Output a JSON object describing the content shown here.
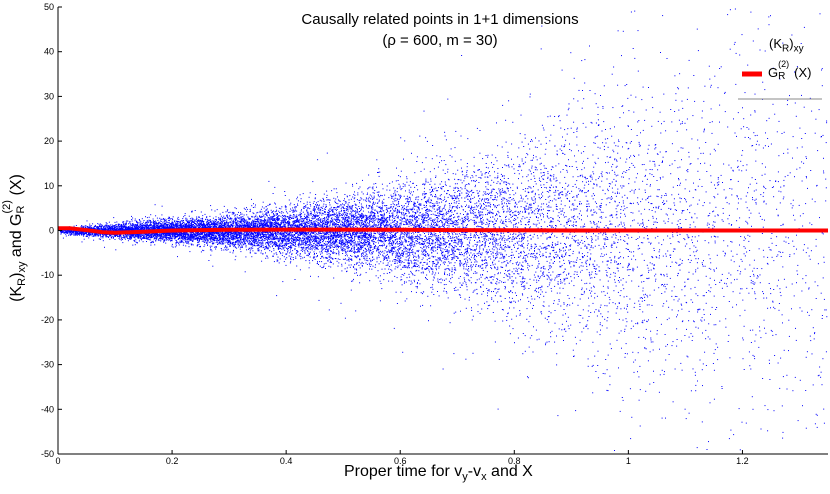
{
  "chart_data": {
    "type": "scatter",
    "title": "Causally related points in 1+1 dimensions",
    "subtitle": "(ρ = 600, m = 30)",
    "xlabel": "Proper time for v_y-v_x and X",
    "ylabel": "(K_R)_xy and G_R^(2)(X)",
    "xlim": [
      0,
      1.35
    ],
    "ylim": [
      -50,
      50
    ],
    "x_ticks": [
      0,
      0.2,
      0.4,
      0.6,
      0.8,
      1,
      1.2
    ],
    "x_tick_labels": [
      "0",
      "0.2",
      "0.4",
      "0.6",
      "0.8",
      "1",
      "1.2"
    ],
    "y_ticks": [
      -50,
      -40,
      -30,
      -20,
      -10,
      0,
      10,
      20,
      30,
      40,
      50
    ],
    "y_tick_labels": [
      "-50",
      "-40",
      "-30",
      "-20",
      "-10",
      "0",
      "10",
      "20",
      "30",
      "40",
      "50"
    ],
    "grid": false,
    "legend_placement": "top-right",
    "series": [
      {
        "name": "(K_R)_xy",
        "kind": "scatter",
        "color": "#0000ff",
        "description_of_distribution": "points centered on 0; spread grows with proper time",
        "spread_profile": [
          {
            "x": 0.02,
            "sd": 0.4
          },
          {
            "x": 0.1,
            "sd": 0.8
          },
          {
            "x": 0.2,
            "sd": 1.2
          },
          {
            "x": 0.3,
            "sd": 1.7
          },
          {
            "x": 0.4,
            "sd": 2.5
          },
          {
            "x": 0.5,
            "sd": 3.6
          },
          {
            "x": 0.6,
            "sd": 5.0
          },
          {
            "x": 0.7,
            "sd": 7.0
          },
          {
            "x": 0.8,
            "sd": 9.5
          },
          {
            "x": 0.9,
            "sd": 12.5
          },
          {
            "x": 1.0,
            "sd": 16.0
          },
          {
            "x": 1.1,
            "sd": 19.0
          },
          {
            "x": 1.2,
            "sd": 22.0
          },
          {
            "x": 1.35,
            "sd": 25.0
          }
        ],
        "point_density_profile": [
          {
            "x": 0.0,
            "w": 0.3
          },
          {
            "x": 0.1,
            "w": 0.8
          },
          {
            "x": 0.3,
            "w": 1.0
          },
          {
            "x": 0.5,
            "w": 0.9
          },
          {
            "x": 0.7,
            "w": 0.65
          },
          {
            "x": 0.9,
            "w": 0.4
          },
          {
            "x": 1.1,
            "w": 0.22
          },
          {
            "x": 1.35,
            "w": 0.12
          }
        ]
      },
      {
        "name": "G_R^(2)(X)",
        "kind": "line",
        "color": "#ff0000",
        "x": [
          0,
          0.02,
          0.05,
          0.08,
          0.1,
          0.15,
          0.2,
          0.3,
          0.4,
          0.5,
          0.6,
          0.7,
          0.8,
          0.9,
          1.0,
          1.1,
          1.2,
          1.3,
          1.35
        ],
        "y": [
          0.5,
          0.5,
          0.1,
          -0.4,
          -0.5,
          -0.3,
          0.0,
          0.15,
          0.2,
          0.2,
          0.15,
          0.1,
          0.05,
          0.0,
          0.0,
          0.0,
          0.0,
          0.0,
          0.0
        ]
      }
    ]
  },
  "legend": {
    "scatter_label_base": "(K",
    "scatter_label_sub1": "R",
    "scatter_label_mid": ")",
    "scatter_label_sub2": "xy",
    "line_label_base": "G",
    "line_label_sub": "R",
    "line_label_sup": "(2)",
    "line_label_tail": "(X)"
  },
  "axis_text": {
    "x_main": "Proper time for v",
    "x_sub1": "y",
    "x_mid": "-v",
    "x_sub2": "x",
    "x_tail": " and X",
    "y_open": "(K",
    "y_sub1": "R",
    "y_close": ")",
    "y_sub2": "xy",
    "y_and": " and G",
    "y_sub3": "R",
    "y_sup": "(2)",
    "y_tail": "(X)"
  }
}
